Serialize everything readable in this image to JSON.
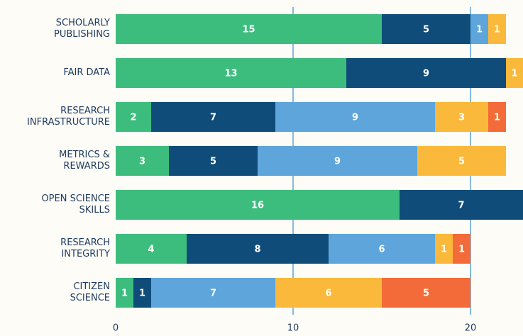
{
  "chart_data": {
    "type": "stacked-bar-horizontal",
    "categories": [
      "SCHOLARLY\nPUBLISHING",
      "FAIR DATA",
      "RESEARCH\nINFRASTRUCTURE",
      "METRICS &\nREWARDS",
      "OPEN SCIENCE\nSKILLS",
      "RESEARCH\nINTEGRITY",
      "CITIZEN\nSCIENCE"
    ],
    "series": [
      {
        "color": "#3dbd7d",
        "values": [
          15,
          13,
          2,
          3,
          16,
          4,
          1
        ]
      },
      {
        "color": "#0f4c7a",
        "values": [
          5,
          9,
          7,
          5,
          7,
          8,
          1
        ]
      },
      {
        "color": "#5da5da",
        "values": [
          1,
          null,
          9,
          9,
          null,
          6,
          7
        ]
      },
      {
        "color": "#fbb93b",
        "values": [
          1,
          1,
          3,
          5,
          null,
          1,
          6
        ]
      },
      {
        "color": "#f26b38",
        "values": [
          null,
          null,
          1,
          null,
          null,
          1,
          5
        ]
      }
    ],
    "xlim": [
      0,
      23
    ],
    "xticks": [
      0,
      10,
      20
    ],
    "grid": true
  }
}
